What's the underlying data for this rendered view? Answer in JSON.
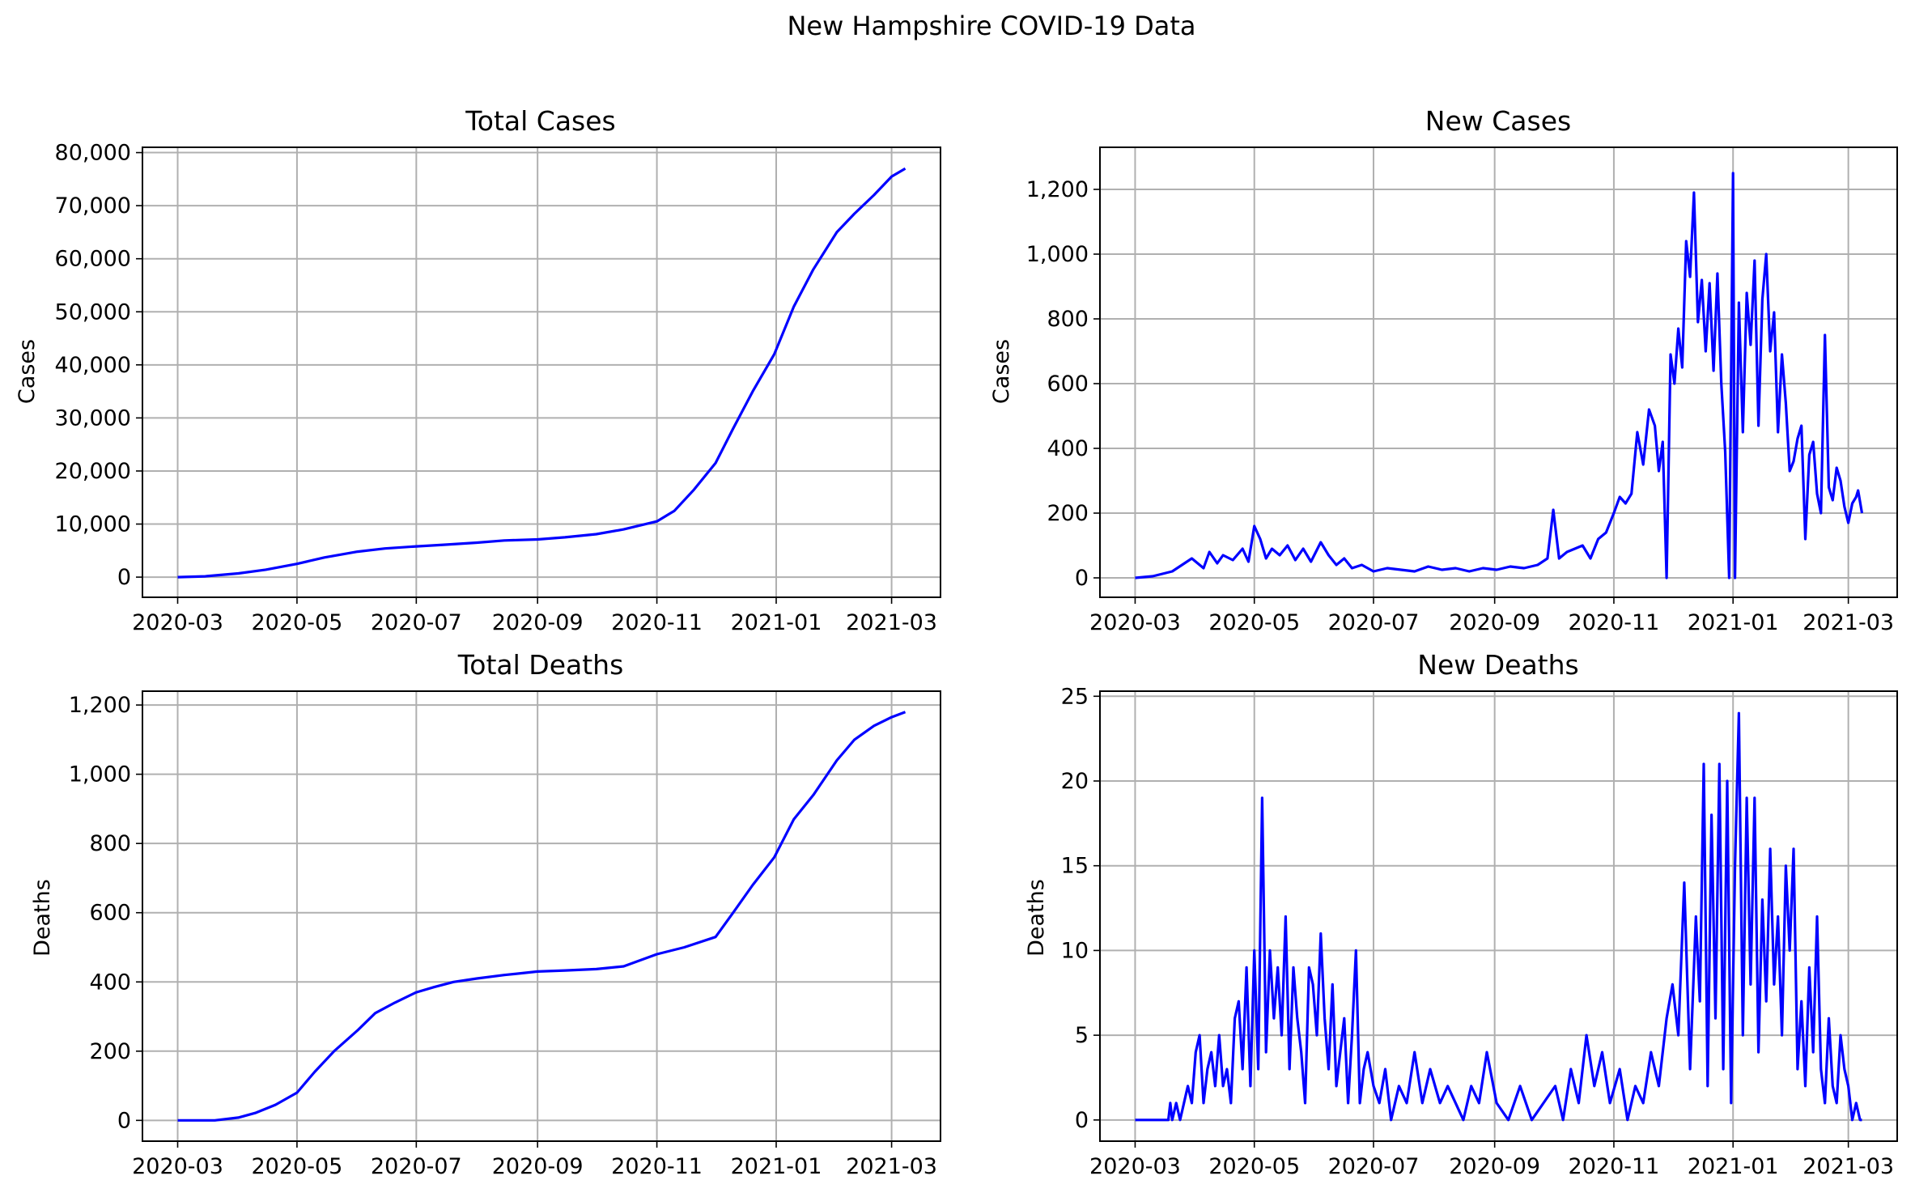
{
  "figure": {
    "title": "New Hampshire COVID-19 Data"
  },
  "chart_data": [
    {
      "type": "line",
      "title": "Total Cases",
      "xlabel": "",
      "ylabel": "Cases",
      "x_start": "2020-03-01",
      "x_end": "2021-03-08",
      "xlim": [
        "2020-02-12",
        "2021-03-26"
      ],
      "ylim": [
        -3800,
        81000
      ],
      "x_ticks": [
        "2020-03",
        "2020-05",
        "2020-07",
        "2020-09",
        "2020-11",
        "2021-01",
        "2021-03"
      ],
      "y_ticks": [
        0,
        10000,
        20000,
        30000,
        40000,
        50000,
        60000,
        70000,
        80000
      ],
      "y_tick_labels": [
        "0",
        "10,000",
        "20,000",
        "30,000",
        "40,000",
        "50,000",
        "60,000",
        "70,000",
        "80,000"
      ],
      "grid": true,
      "color": "#0000ff",
      "series": [
        {
          "x": [
            "2020-03-01",
            "2020-03-15",
            "2020-04-01",
            "2020-04-15",
            "2020-05-01",
            "2020-05-15",
            "2020-06-01",
            "2020-06-15",
            "2020-07-01",
            "2020-07-15",
            "2020-08-01",
            "2020-08-15",
            "2020-09-01",
            "2020-09-15",
            "2020-10-01",
            "2020-10-15",
            "2020-11-01",
            "2020-11-10",
            "2020-11-20",
            "2020-12-01",
            "2020-12-10",
            "2020-12-20",
            "2020-12-31",
            "2021-01-10",
            "2021-01-20",
            "2021-02-01",
            "2021-02-10",
            "2021-02-20",
            "2021-03-01",
            "2021-03-08"
          ],
          "values": [
            0,
            150,
            700,
            1400,
            2500,
            3700,
            4800,
            5400,
            5800,
            6100,
            6500,
            6900,
            7100,
            7500,
            8100,
            9000,
            10500,
            12500,
            16500,
            21500,
            28000,
            35000,
            42000,
            51000,
            58000,
            65000,
            68500,
            72000,
            75500,
            77000
          ]
        }
      ]
    },
    {
      "type": "line",
      "title": "New Cases",
      "xlabel": "",
      "ylabel": "Cases",
      "x_start": "2020-03-01",
      "x_end": "2021-03-08",
      "xlim": [
        "2020-02-12",
        "2021-03-26"
      ],
      "ylim": [
        -60,
        1330
      ],
      "x_ticks": [
        "2020-03",
        "2020-05",
        "2020-07",
        "2020-09",
        "2020-11",
        "2021-01",
        "2021-03"
      ],
      "y_ticks": [
        0,
        200,
        400,
        600,
        800,
        1000,
        1200
      ],
      "y_tick_labels": [
        "0",
        "200",
        "400",
        "600",
        "800",
        "1,000",
        "1,200"
      ],
      "grid": true,
      "color": "#0000ff",
      "series": [
        {
          "x": [
            "2020-03-01",
            "2020-03-10",
            "2020-03-20",
            "2020-03-25",
            "2020-03-30",
            "2020-04-05",
            "2020-04-08",
            "2020-04-12",
            "2020-04-15",
            "2020-04-20",
            "2020-04-25",
            "2020-04-28",
            "2020-05-01",
            "2020-05-04",
            "2020-05-07",
            "2020-05-10",
            "2020-05-14",
            "2020-05-18",
            "2020-05-22",
            "2020-05-26",
            "2020-05-30",
            "2020-06-04",
            "2020-06-08",
            "2020-06-12",
            "2020-06-16",
            "2020-06-20",
            "2020-06-25",
            "2020-07-01",
            "2020-07-08",
            "2020-07-15",
            "2020-07-22",
            "2020-07-29",
            "2020-08-05",
            "2020-08-12",
            "2020-08-19",
            "2020-08-26",
            "2020-09-02",
            "2020-09-09",
            "2020-09-16",
            "2020-09-23",
            "2020-09-28",
            "2020-10-01",
            "2020-10-04",
            "2020-10-08",
            "2020-10-12",
            "2020-10-16",
            "2020-10-20",
            "2020-10-24",
            "2020-10-28",
            "2020-11-01",
            "2020-11-04",
            "2020-11-07",
            "2020-11-10",
            "2020-11-13",
            "2020-11-16",
            "2020-11-19",
            "2020-11-22",
            "2020-11-24",
            "2020-11-26",
            "2020-11-28",
            "2020-11-30",
            "2020-12-02",
            "2020-12-04",
            "2020-12-06",
            "2020-12-08",
            "2020-12-10",
            "2020-12-12",
            "2020-12-14",
            "2020-12-16",
            "2020-12-18",
            "2020-12-20",
            "2020-12-22",
            "2020-12-24",
            "2020-12-26",
            "2020-12-28",
            "2020-12-30",
            "2021-01-01",
            "2021-01-02",
            "2021-01-04",
            "2021-01-06",
            "2021-01-08",
            "2021-01-10",
            "2021-01-12",
            "2021-01-14",
            "2021-01-16",
            "2021-01-18",
            "2021-01-20",
            "2021-01-22",
            "2021-01-24",
            "2021-01-26",
            "2021-01-28",
            "2021-01-30",
            "2021-02-01",
            "2021-02-03",
            "2021-02-05",
            "2021-02-07",
            "2021-02-09",
            "2021-02-11",
            "2021-02-13",
            "2021-02-15",
            "2021-02-17",
            "2021-02-19",
            "2021-02-21",
            "2021-02-23",
            "2021-02-25",
            "2021-02-27",
            "2021-03-01",
            "2021-03-03",
            "2021-03-05",
            "2021-03-06",
            "2021-03-08"
          ],
          "values": [
            0,
            5,
            20,
            40,
            60,
            30,
            80,
            45,
            70,
            55,
            90,
            50,
            160,
            120,
            60,
            90,
            70,
            100,
            55,
            90,
            50,
            110,
            70,
            40,
            60,
            30,
            40,
            20,
            30,
            25,
            20,
            35,
            25,
            30,
            20,
            30,
            25,
            35,
            30,
            40,
            60,
            210,
            60,
            80,
            90,
            100,
            60,
            120,
            140,
            200,
            250,
            230,
            260,
            450,
            350,
            520,
            470,
            330,
            420,
            0,
            690,
            600,
            770,
            650,
            1040,
            930,
            1190,
            790,
            920,
            700,
            910,
            640,
            940,
            600,
            390,
            0,
            1250,
            0,
            850,
            450,
            880,
            720,
            980,
            470,
            860,
            1000,
            700,
            820,
            450,
            690,
            540,
            330,
            360,
            430,
            470,
            120,
            380,
            420,
            260,
            200,
            750,
            280,
            240,
            340,
            300,
            220,
            170,
            230,
            250,
            270,
            200
          ]
        }
      ]
    },
    {
      "type": "line",
      "title": "Total Deaths",
      "xlabel": "",
      "ylabel": "Deaths",
      "x_start": "2020-03-01",
      "x_end": "2021-03-08",
      "xlim": [
        "2020-02-12",
        "2021-03-26"
      ],
      "ylim": [
        -60,
        1240
      ],
      "x_ticks": [
        "2020-03",
        "2020-05",
        "2020-07",
        "2020-09",
        "2020-11",
        "2021-01",
        "2021-03"
      ],
      "y_ticks": [
        0,
        200,
        400,
        600,
        800,
        1000,
        1200
      ],
      "y_tick_labels": [
        "0",
        "200",
        "400",
        "600",
        "800",
        "1,000",
        "1,200"
      ],
      "grid": true,
      "color": "#0000ff",
      "series": [
        {
          "x": [
            "2020-03-01",
            "2020-03-20",
            "2020-04-01",
            "2020-04-10",
            "2020-04-20",
            "2020-05-01",
            "2020-05-10",
            "2020-05-20",
            "2020-06-01",
            "2020-06-10",
            "2020-06-20",
            "2020-07-01",
            "2020-07-10",
            "2020-07-20",
            "2020-08-01",
            "2020-08-15",
            "2020-09-01",
            "2020-09-15",
            "2020-10-01",
            "2020-10-15",
            "2020-11-01",
            "2020-11-15",
            "2020-12-01",
            "2020-12-10",
            "2020-12-20",
            "2020-12-31",
            "2021-01-10",
            "2021-01-20",
            "2021-02-01",
            "2021-02-10",
            "2021-02-20",
            "2021-03-01",
            "2021-03-08"
          ],
          "values": [
            0,
            0,
            8,
            22,
            45,
            80,
            140,
            200,
            260,
            310,
            340,
            370,
            385,
            400,
            410,
            420,
            430,
            433,
            437,
            445,
            480,
            500,
            530,
            600,
            680,
            760,
            870,
            940,
            1040,
            1100,
            1140,
            1165,
            1180
          ]
        }
      ]
    },
    {
      "type": "line",
      "title": "New Deaths",
      "xlabel": "",
      "ylabel": "Deaths",
      "x_start": "2020-03-01",
      "x_end": "2021-03-08",
      "xlim": [
        "2020-02-12",
        "2021-03-26"
      ],
      "ylim": [
        -1.25,
        25.3
      ],
      "x_ticks": [
        "2020-03",
        "2020-05",
        "2020-07",
        "2020-09",
        "2020-11",
        "2021-01",
        "2021-03"
      ],
      "y_ticks": [
        0,
        5,
        10,
        15,
        20,
        25
      ],
      "y_tick_labels": [
        "0",
        "5",
        "10",
        "15",
        "20",
        "25"
      ],
      "grid": true,
      "color": "#0000ff",
      "series": [
        {
          "x": [
            "2020-03-01",
            "2020-03-18",
            "2020-03-19",
            "2020-03-20",
            "2020-03-22",
            "2020-03-24",
            "2020-03-26",
            "2020-03-28",
            "2020-03-30",
            "2020-04-01",
            "2020-04-03",
            "2020-04-05",
            "2020-04-07",
            "2020-04-09",
            "2020-04-11",
            "2020-04-13",
            "2020-04-15",
            "2020-04-17",
            "2020-04-19",
            "2020-04-21",
            "2020-04-23",
            "2020-04-25",
            "2020-04-27",
            "2020-04-29",
            "2020-05-01",
            "2020-05-03",
            "2020-05-05",
            "2020-05-07",
            "2020-05-09",
            "2020-05-11",
            "2020-05-13",
            "2020-05-15",
            "2020-05-17",
            "2020-05-19",
            "2020-05-21",
            "2020-05-23",
            "2020-05-25",
            "2020-05-27",
            "2020-05-29",
            "2020-05-31",
            "2020-06-02",
            "2020-06-04",
            "2020-06-06",
            "2020-06-08",
            "2020-06-10",
            "2020-06-12",
            "2020-06-14",
            "2020-06-16",
            "2020-06-18",
            "2020-06-20",
            "2020-06-22",
            "2020-06-24",
            "2020-06-26",
            "2020-06-28",
            "2020-07-01",
            "2020-07-04",
            "2020-07-07",
            "2020-07-10",
            "2020-07-14",
            "2020-07-18",
            "2020-07-22",
            "2020-07-26",
            "2020-07-30",
            "2020-08-04",
            "2020-08-08",
            "2020-08-12",
            "2020-08-16",
            "2020-08-20",
            "2020-08-24",
            "2020-08-28",
            "2020-09-02",
            "2020-09-08",
            "2020-09-14",
            "2020-09-20",
            "2020-09-26",
            "2020-10-02",
            "2020-10-06",
            "2020-10-10",
            "2020-10-14",
            "2020-10-18",
            "2020-10-22",
            "2020-10-26",
            "2020-10-30",
            "2020-11-04",
            "2020-11-08",
            "2020-11-12",
            "2020-11-16",
            "2020-11-20",
            "2020-11-24",
            "2020-11-28",
            "2020-12-01",
            "2020-12-04",
            "2020-12-07",
            "2020-12-10",
            "2020-12-13",
            "2020-12-15",
            "2020-12-17",
            "2020-12-19",
            "2020-12-21",
            "2020-12-23",
            "2020-12-25",
            "2020-12-27",
            "2020-12-29",
            "2020-12-31",
            "2021-01-02",
            "2021-01-04",
            "2021-01-06",
            "2021-01-08",
            "2021-01-10",
            "2021-01-12",
            "2021-01-14",
            "2021-01-16",
            "2021-01-18",
            "2021-01-20",
            "2021-01-22",
            "2021-01-24",
            "2021-01-26",
            "2021-01-28",
            "2021-01-30",
            "2021-02-01",
            "2021-02-03",
            "2021-02-05",
            "2021-02-07",
            "2021-02-09",
            "2021-02-11",
            "2021-02-13",
            "2021-02-15",
            "2021-02-17",
            "2021-02-19",
            "2021-02-21",
            "2021-02-23",
            "2021-02-25",
            "2021-02-27",
            "2021-03-01",
            "2021-03-03",
            "2021-03-05",
            "2021-03-07",
            "2021-03-08"
          ],
          "values": [
            0,
            0,
            1,
            0,
            1,
            0,
            1,
            2,
            1,
            4,
            5,
            1,
            3,
            4,
            2,
            5,
            2,
            3,
            1,
            6,
            7,
            3,
            9,
            2,
            10,
            3,
            19,
            4,
            10,
            6,
            9,
            5,
            12,
            3,
            9,
            6,
            4,
            1,
            9,
            8,
            5,
            11,
            6,
            3,
            8,
            2,
            4,
            6,
            1,
            5,
            10,
            1,
            3,
            4,
            2,
            1,
            3,
            0,
            2,
            1,
            4,
            1,
            3,
            1,
            2,
            1,
            0,
            2,
            1,
            4,
            1,
            0,
            2,
            0,
            1,
            2,
            0,
            3,
            1,
            5,
            2,
            4,
            1,
            3,
            0,
            2,
            1,
            4,
            2,
            6,
            8,
            5,
            14,
            3,
            12,
            7,
            21,
            2,
            18,
            6,
            21,
            3,
            20,
            1,
            15,
            24,
            5,
            19,
            8,
            19,
            4,
            13,
            7,
            16,
            8,
            12,
            5,
            15,
            10,
            16,
            3,
            7,
            2,
            9,
            4,
            12,
            3,
            1,
            6,
            2,
            1,
            5,
            3,
            2,
            0,
            1,
            0,
            0
          ]
        }
      ]
    }
  ]
}
